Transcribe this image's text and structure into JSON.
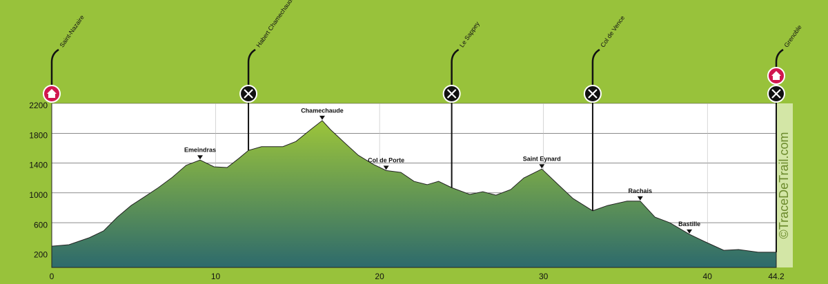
{
  "chart_data": {
    "type": "area",
    "x": [
      0,
      1.05,
      2.3,
      3.16,
      4.0,
      4.84,
      5.68,
      6.5,
      7.36,
      8.2,
      9.05,
      9.9,
      10.7,
      11.4,
      12.0,
      12.8,
      14.1,
      14.9,
      15.8,
      16.5,
      17.0,
      17.9,
      18.7,
      19.6,
      20.4,
      21.3,
      22.1,
      22.9,
      23.6,
      24.4,
      25.5,
      26.3,
      27.1,
      28.0,
      28.8,
      29.9,
      30.9,
      31.8,
      33.0,
      33.9,
      35.1,
      35.9,
      36.8,
      37.7,
      38.9,
      39.8,
      41.0,
      41.9,
      43.1,
      44.2
    ],
    "values": [
      285,
      305,
      400,
      490,
      675,
      830,
      950,
      1070,
      1210,
      1370,
      1440,
      1350,
      1340,
      1460,
      1570,
      1620,
      1620,
      1690,
      1850,
      1970,
      1850,
      1665,
      1505,
      1385,
      1300,
      1275,
      1155,
      1110,
      1155,
      1070,
      980,
      1015,
      970,
      1045,
      1200,
      1320,
      1110,
      925,
      760,
      830,
      890,
      890,
      675,
      600,
      445,
      350,
      230,
      240,
      205,
      205
    ],
    "color_top": "#9cc53a",
    "color_bottom": "#2d6a6c",
    "xlim": [
      0,
      44.2
    ],
    "xticks": [
      0,
      10,
      20,
      30,
      40,
      44.2
    ],
    "ylim": [
      0,
      2200
    ],
    "yticks": [
      200,
      600,
      1000,
      1400,
      1800,
      2200
    ],
    "grid": true,
    "waypoints": [
      {
        "name": "Saint-Nazaire",
        "x": 0
      },
      {
        "name": "Habert Chamechaude",
        "x": 12.0
      },
      {
        "name": "Le Sappey",
        "x": 24.4
      },
      {
        "name": "Col de Vence",
        "x": 33.0
      },
      {
        "name": "Grenoble",
        "x": 44.2
      }
    ],
    "summits": [
      {
        "name": "Emeindras",
        "x": 9.05,
        "y": 1440
      },
      {
        "name": "Chamechaude",
        "x": 16.5,
        "y": 1970
      },
      {
        "name": "Col de Porte",
        "x": 20.4,
        "y": 1300
      },
      {
        "name": "Saint Eynard",
        "x": 29.9,
        "y": 1320
      },
      {
        "name": "Rachais",
        "x": 35.9,
        "y": 890
      },
      {
        "name": "Bastille",
        "x": 38.9,
        "y": 445
      }
    ],
    "brand": "©TraceDeTrail.com"
  }
}
